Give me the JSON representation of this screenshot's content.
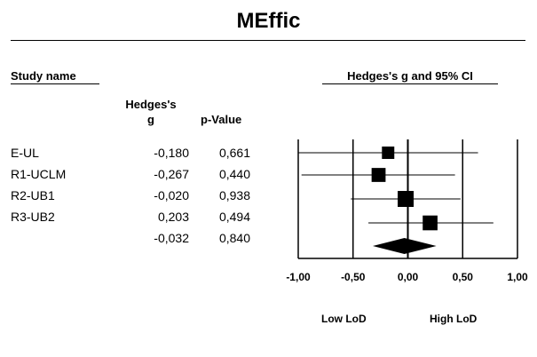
{
  "title": "MEffic",
  "headers": {
    "study_name": "Study name",
    "ci_header": "Hedges's g and 95% CI",
    "g_line1": "Hedges's",
    "g_line2": "g",
    "pvalue": "p-Value"
  },
  "rows": [
    {
      "study": "E-UL",
      "g": "-0,180",
      "p": "0,661"
    },
    {
      "study": "R1-UCLM",
      "g": "-0,267",
      "p": "0,440"
    },
    {
      "study": "R2-UB1",
      "g": "-0,020",
      "p": "0,938"
    },
    {
      "study": "R3-UB2",
      "g": "0,203",
      "p": "0,494"
    },
    {
      "study": "",
      "g": "-0,032",
      "p": "0,840"
    }
  ],
  "axis_labels": {
    "low": "Low LoD",
    "high": "High LoD"
  },
  "chart_data": {
    "type": "forest",
    "xlim": [
      -1.0,
      1.0
    ],
    "x_ticks": [
      -1.0,
      -0.5,
      0.0,
      0.5,
      1.0
    ],
    "x_tick_labels": [
      "-1,00",
      "-0,50",
      "0,00",
      "0,50",
      "1,00"
    ],
    "studies": [
      {
        "name": "E-UL",
        "g": -0.18,
        "ci_low": -1.0,
        "ci_high": 0.64,
        "weight": 0.55
      },
      {
        "name": "R1-UCLM",
        "g": -0.267,
        "ci_low": -0.97,
        "ci_high": 0.43,
        "weight": 0.75
      },
      {
        "name": "R2-UB1",
        "g": -0.02,
        "ci_low": -0.52,
        "ci_high": 0.48,
        "weight": 1.0
      },
      {
        "name": "R3-UB2",
        "g": 0.203,
        "ci_low": -0.36,
        "ci_high": 0.78,
        "weight": 0.85
      }
    ],
    "summary": {
      "g": -0.032,
      "ci_low": -0.32,
      "ci_high": 0.26
    }
  }
}
